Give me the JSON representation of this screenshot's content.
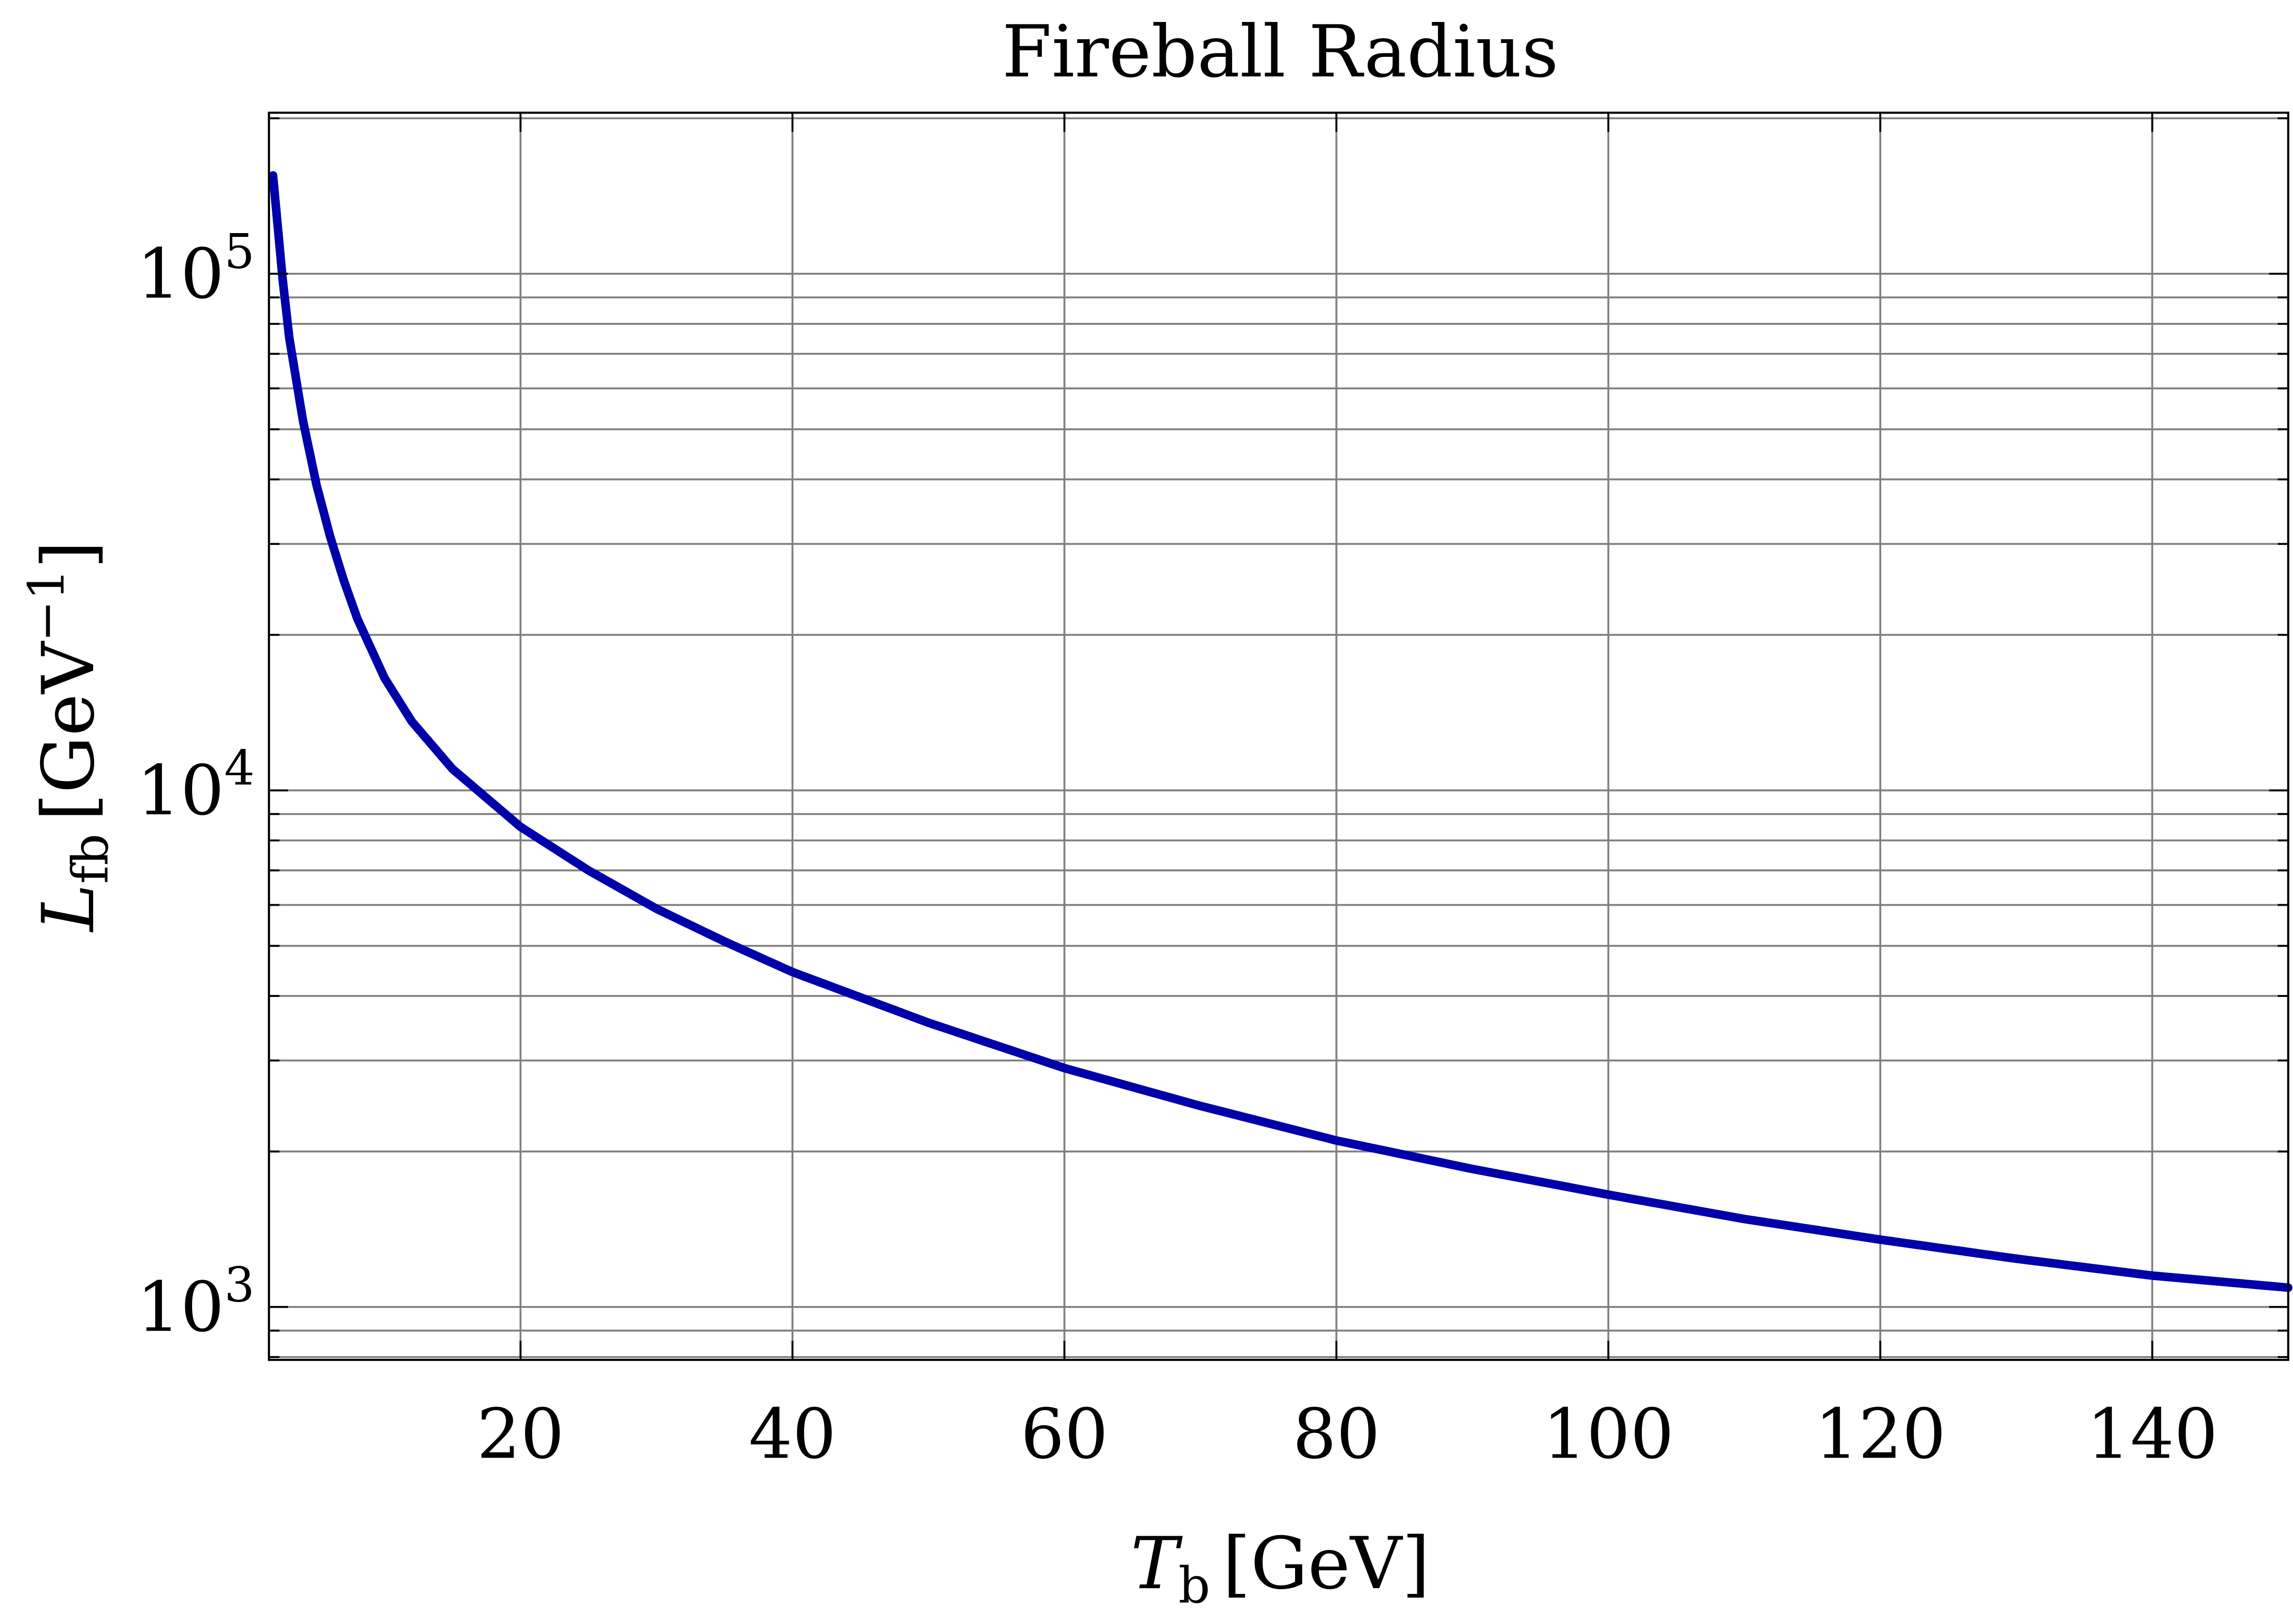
{
  "chart_data": {
    "type": "line",
    "title": "Fireball Radius",
    "xlabel": {
      "symbol": "T",
      "subscript": "b",
      "unit": "[GeV]"
    },
    "ylabel": {
      "symbol": "L",
      "subscript": "fb",
      "unit_open": "[GeV",
      "unit_exponent": "−1",
      "unit_close": "]"
    },
    "xscale": "linear",
    "yscale": "log",
    "xlim": [
      1.5,
      150
    ],
    "ylim": [
      790,
      205000
    ],
    "xticks": [
      {
        "value": 20,
        "label": "20"
      },
      {
        "value": 40,
        "label": "40"
      },
      {
        "value": 60,
        "label": "60"
      },
      {
        "value": 80,
        "label": "80"
      },
      {
        "value": 100,
        "label": "100"
      },
      {
        "value": 120,
        "label": "120"
      },
      {
        "value": 140,
        "label": "140"
      }
    ],
    "yticks": [
      {
        "value": 1000,
        "base": "10",
        "exponent": "3"
      },
      {
        "value": 10000,
        "base": "10",
        "exponent": "4"
      },
      {
        "value": 100000,
        "base": "10",
        "exponent": "5"
      }
    ],
    "grid": true,
    "series": [
      {
        "name": "L_fb",
        "color": "#0000aa",
        "x": [
          1.8,
          2.5,
          3,
          4,
          5,
          6,
          7,
          8,
          10,
          12,
          15,
          20,
          25,
          30,
          35,
          40,
          50,
          60,
          70,
          80,
          90,
          100,
          110,
          120,
          130,
          140,
          150
        ],
        "y": [
          155000,
          98000,
          75000,
          52000,
          39000,
          31000,
          25500,
          21500,
          16500,
          13600,
          11000,
          8500,
          7000,
          5900,
          5100,
          4450,
          3550,
          2900,
          2450,
          2100,
          1850,
          1650,
          1480,
          1350,
          1240,
          1150,
          1090
        ]
      }
    ]
  }
}
